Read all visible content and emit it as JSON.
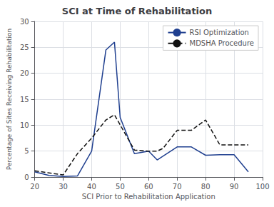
{
  "chart_data": {
    "type": "line",
    "title": "SCI at Time of Rehabilitation",
    "xlabel": "SCI Prior to Rehabilitation Application",
    "ylabel": "Percentage of Sites Receiving Rehabilitation",
    "xlim": [
      20,
      100
    ],
    "ylim": [
      0,
      30
    ],
    "xticks": [
      20,
      30,
      40,
      50,
      60,
      70,
      80,
      90,
      100
    ],
    "yticks": [
      0,
      5,
      10,
      15,
      20,
      25,
      30
    ],
    "grid": true,
    "legend": "upper right",
    "series": [
      {
        "name": "RSI Optimization",
        "color": "#1f3f8f",
        "line_style": "solid",
        "x": [
          20,
          25,
          30,
          35,
          40,
          45,
          48,
          50,
          55,
          60,
          63,
          65,
          70,
          75,
          80,
          85,
          90,
          95
        ],
        "values": [
          1.0,
          0.3,
          0.1,
          0.2,
          5.0,
          24.5,
          26.0,
          11.5,
          4.5,
          5.0,
          3.3,
          4.0,
          5.8,
          5.8,
          4.2,
          4.3,
          4.3,
          1.0
        ]
      },
      {
        "name": "MDSHA Procedure",
        "color": "#111111",
        "line_style": "dashed",
        "x": [
          20,
          25,
          30,
          35,
          40,
          45,
          48,
          55,
          60,
          63,
          65,
          70,
          75,
          80,
          85,
          90,
          95
        ],
        "values": [
          1.2,
          0.8,
          0.4,
          4.5,
          7.5,
          11.0,
          12.0,
          5.2,
          5.0,
          5.0,
          5.5,
          9.0,
          9.0,
          11.0,
          6.2,
          6.2,
          6.2
        ]
      }
    ]
  }
}
